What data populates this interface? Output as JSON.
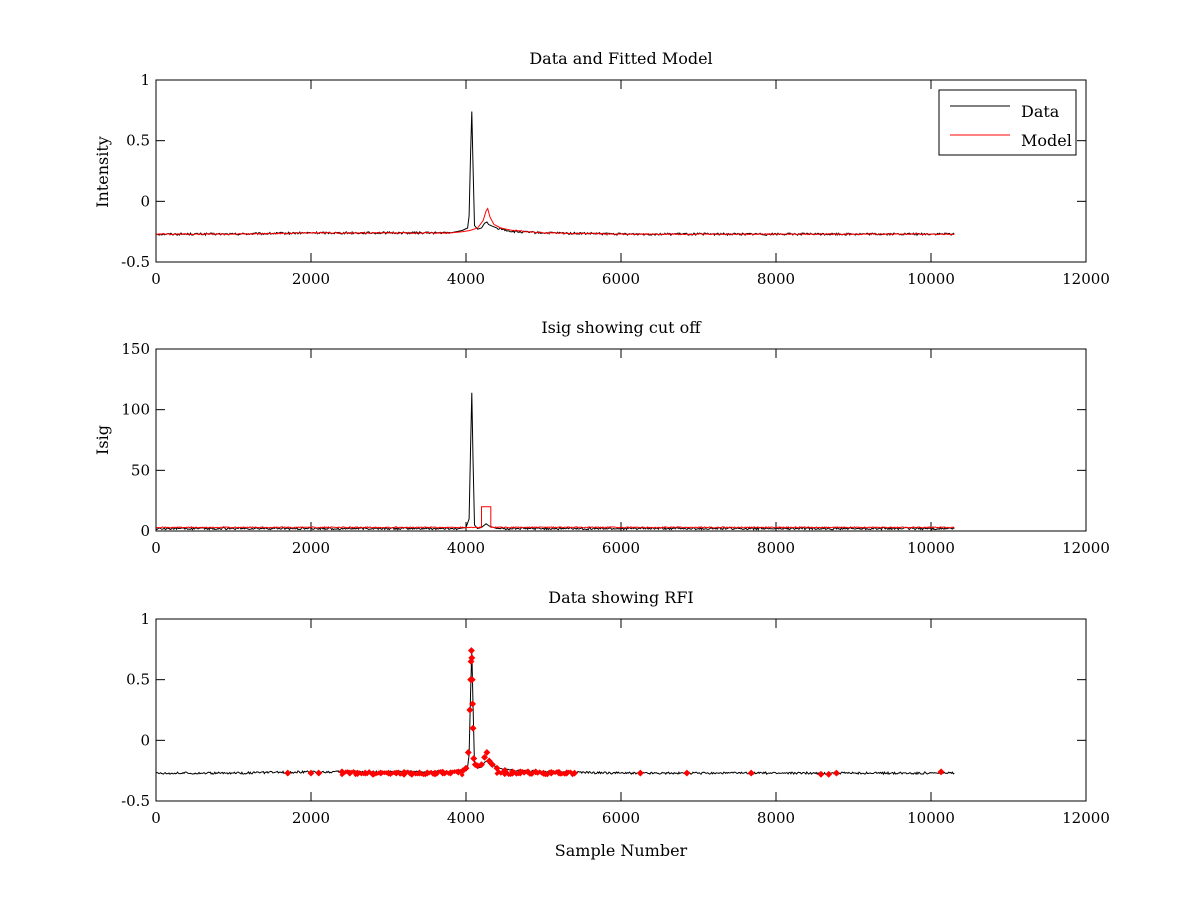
{
  "figure": {
    "background": "#ffffff"
  },
  "legend_labels": {
    "data": "Data",
    "model": "Model"
  },
  "colors": {
    "data": "#000000",
    "model": "#ff0000",
    "rfi": "#ff0000"
  },
  "chart_data": [
    {
      "type": "line",
      "title": "Data and Fitted Model",
      "xlabel": "",
      "ylabel": "Intensity",
      "xlim": [
        0,
        12000
      ],
      "ylim": [
        -0.5,
        1
      ],
      "xticks": [
        "0",
        "2000",
        "4000",
        "6000",
        "8000",
        "10000",
        "12000"
      ],
      "yticks": [
        "-0.5",
        "0",
        "0.5",
        "1"
      ],
      "grid": false,
      "legend": "top-right",
      "series": [
        {
          "name": "Data",
          "color": "#000000",
          "x": [
            0,
            1000,
            2000,
            3000,
            3800,
            3950,
            4020,
            4040,
            4060,
            4075,
            4090,
            4110,
            4150,
            4200,
            4240,
            4270,
            4290,
            4320,
            4400,
            4600,
            5000,
            6000,
            7000,
            8000,
            9000,
            10000,
            10300
          ],
          "y": [
            -0.27,
            -0.27,
            -0.26,
            -0.26,
            -0.26,
            -0.24,
            -0.22,
            -0.12,
            0.4,
            0.74,
            0.3,
            -0.2,
            -0.23,
            -0.22,
            -0.18,
            -0.17,
            -0.19,
            -0.2,
            -0.22,
            -0.25,
            -0.26,
            -0.27,
            -0.27,
            -0.27,
            -0.27,
            -0.27,
            -0.27
          ]
        },
        {
          "name": "Model",
          "color": "#ff0000",
          "x": [
            0,
            1000,
            2000,
            3000,
            3800,
            3950,
            4050,
            4150,
            4220,
            4260,
            4280,
            4310,
            4360,
            4450,
            4600,
            5000,
            6000,
            7000,
            8000,
            9000,
            10000,
            10300
          ],
          "y": [
            -0.27,
            -0.27,
            -0.26,
            -0.26,
            -0.26,
            -0.25,
            -0.24,
            -0.22,
            -0.16,
            -0.08,
            -0.06,
            -0.13,
            -0.19,
            -0.22,
            -0.24,
            -0.26,
            -0.27,
            -0.27,
            -0.27,
            -0.27,
            -0.27,
            -0.27
          ]
        }
      ]
    },
    {
      "type": "line",
      "title": "Isig showing cut off",
      "xlabel": "",
      "ylabel": "Isig",
      "xlim": [
        0,
        12000
      ],
      "ylim": [
        0,
        150
      ],
      "xticks": [
        "0",
        "2000",
        "4000",
        "6000",
        "8000",
        "10000",
        "12000"
      ],
      "yticks": [
        "0",
        "50",
        "100",
        "150"
      ],
      "grid": false,
      "series": [
        {
          "color": "#000000",
          "x": [
            0,
            1000,
            2000,
            3000,
            3900,
            4000,
            4040,
            4060,
            4075,
            4090,
            4110,
            4150,
            4200,
            4260,
            4300,
            4400,
            5000,
            6000,
            7000,
            8000,
            9000,
            10000,
            10300
          ],
          "y": [
            2,
            2,
            2,
            2,
            2,
            3,
            10,
            70,
            114,
            60,
            5,
            2,
            3,
            6,
            4,
            2,
            2,
            2,
            2,
            2,
            2,
            2,
            2
          ]
        },
        {
          "color": "#ff0000",
          "x": [
            0,
            4195,
            4200,
            4200,
            4320,
            4320,
            4325,
            10300
          ],
          "y": [
            3,
            3,
            3,
            20,
            20,
            3,
            3,
            3
          ]
        }
      ]
    },
    {
      "type": "scatter",
      "title": "Data showing RFI",
      "xlabel": "Sample Number",
      "ylabel": "",
      "xlim": [
        0,
        12000
      ],
      "ylim": [
        -0.5,
        1
      ],
      "xticks": [
        "0",
        "2000",
        "4000",
        "6000",
        "8000",
        "10000",
        "12000"
      ],
      "yticks": [
        "-0.5",
        "0",
        "0.5",
        "1"
      ],
      "grid": false,
      "series": [
        {
          "color": "#000000",
          "x": [
            0,
            1000,
            2000,
            3000,
            3800,
            3950,
            4020,
            4040,
            4060,
            4075,
            4090,
            4110,
            4150,
            4200,
            4240,
            4270,
            4290,
            4320,
            4400,
            4600,
            5000,
            6000,
            7000,
            8000,
            9000,
            10000,
            10300
          ],
          "y": [
            -0.27,
            -0.27,
            -0.26,
            -0.26,
            -0.26,
            -0.24,
            -0.22,
            -0.12,
            0.4,
            0.74,
            0.3,
            -0.2,
            -0.23,
            -0.22,
            -0.18,
            -0.17,
            -0.19,
            -0.2,
            -0.22,
            -0.25,
            -0.26,
            -0.27,
            -0.27,
            -0.27,
            -0.27,
            -0.27,
            -0.27
          ]
        },
        {
          "color": "#ff0000",
          "marker": "diamond",
          "x": [
            1700,
            2000,
            2100,
            2400,
            2500,
            2600,
            2700,
            2800,
            2900,
            3000,
            3100,
            3200,
            3300,
            3400,
            3500,
            3600,
            3700,
            3800,
            3900,
            3960,
            4000,
            4030,
            4050,
            4060,
            4065,
            4070,
            4075,
            4080,
            4085,
            4090,
            4100,
            4120,
            4150,
            4200,
            4240,
            4270,
            4300,
            4340,
            4400,
            4500,
            4600,
            4700,
            4800,
            4900,
            5000,
            5100,
            5200,
            5300,
            5400,
            6250,
            6850,
            7680,
            8580,
            8680,
            8780,
            10130
          ],
          "y": [
            -0.27,
            -0.27,
            -0.27,
            -0.26,
            -0.27,
            -0.27,
            -0.27,
            -0.28,
            -0.27,
            -0.27,
            -0.27,
            -0.28,
            -0.28,
            -0.27,
            -0.27,
            -0.27,
            -0.27,
            -0.27,
            -0.26,
            -0.25,
            -0.23,
            -0.1,
            0.25,
            0.5,
            0.65,
            0.74,
            0.68,
            0.5,
            0.3,
            0.1,
            -0.15,
            -0.2,
            -0.21,
            -0.2,
            -0.14,
            -0.1,
            -0.17,
            -0.2,
            -0.23,
            -0.25,
            -0.26,
            -0.26,
            -0.26,
            -0.26,
            -0.27,
            -0.27,
            -0.27,
            -0.27,
            -0.27,
            -0.27,
            -0.27,
            -0.27,
            -0.28,
            -0.28,
            -0.27,
            -0.26
          ]
        }
      ]
    }
  ]
}
